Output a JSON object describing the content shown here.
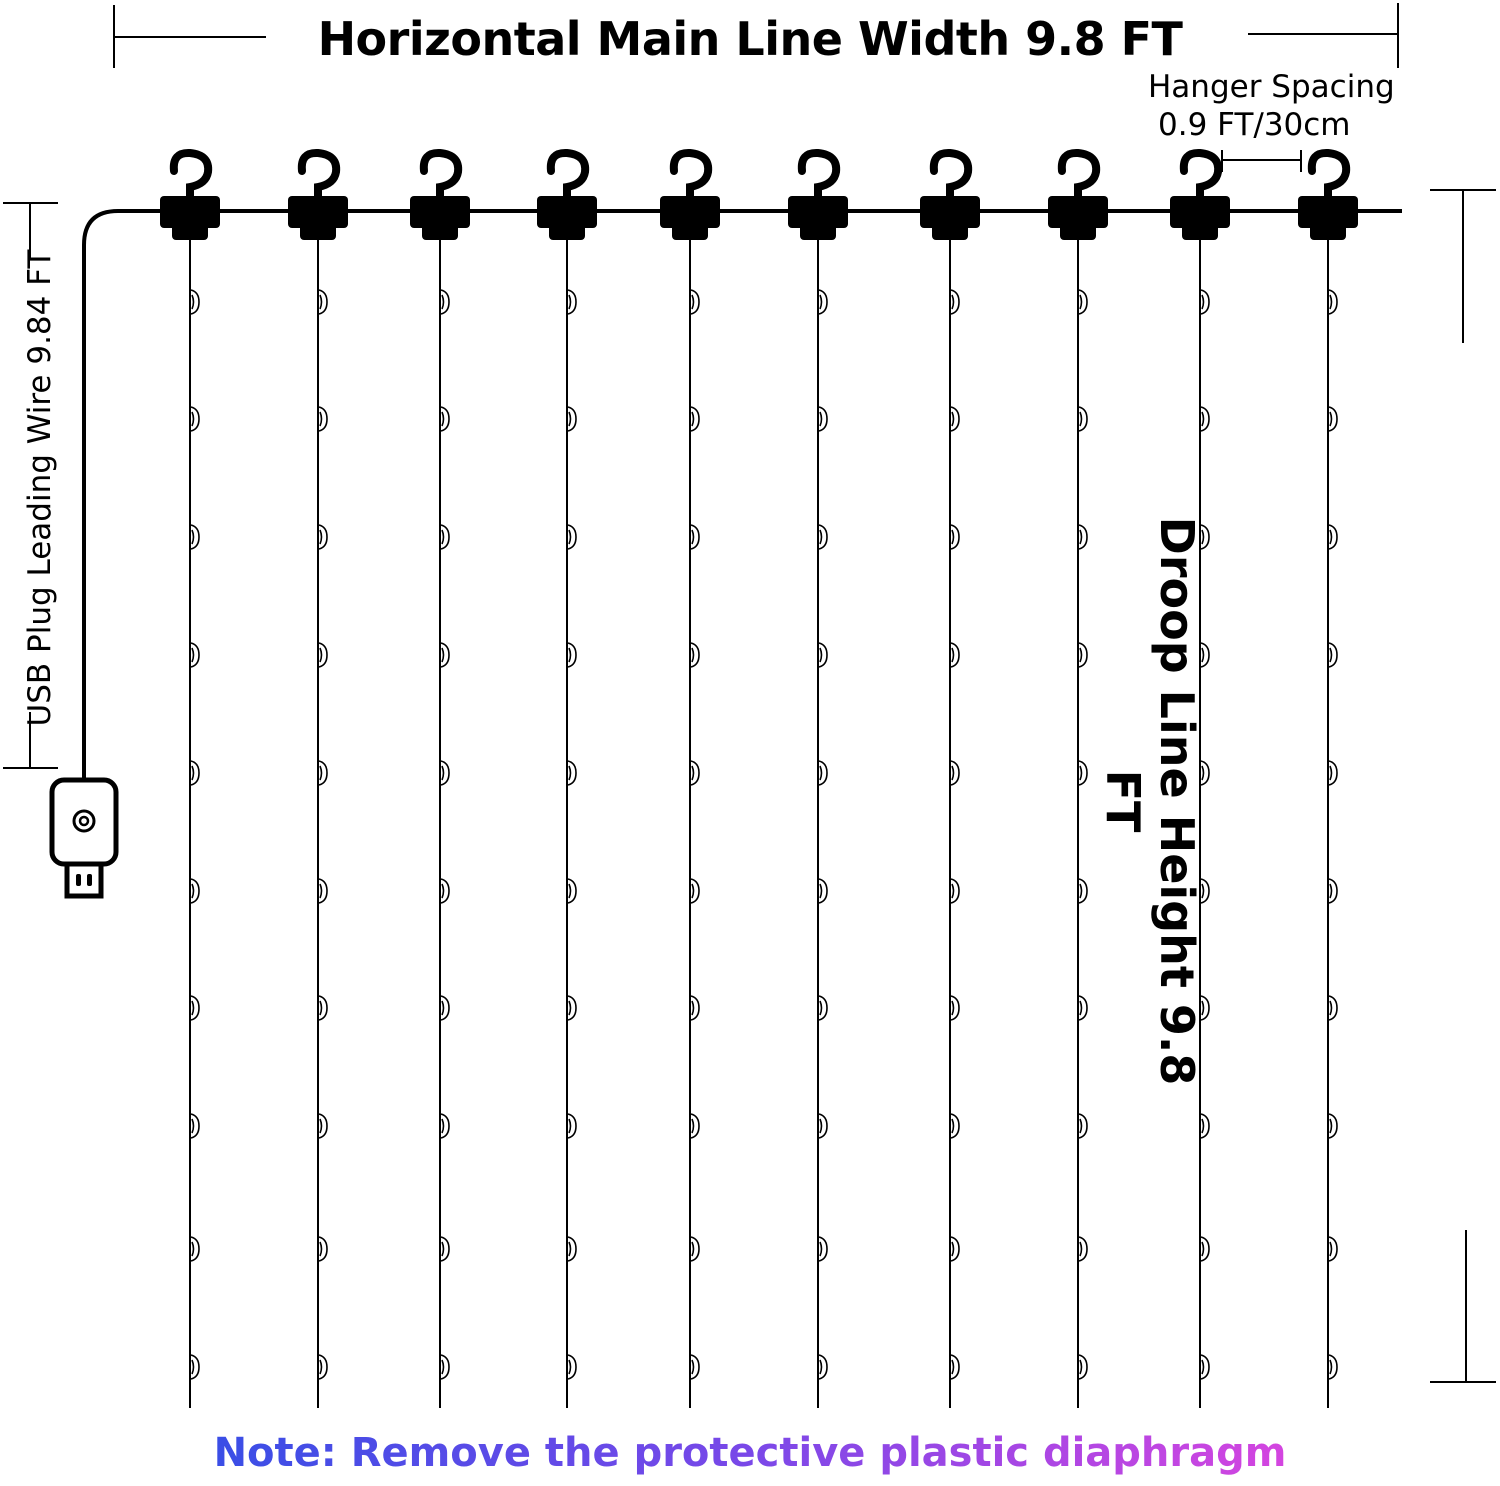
{
  "title": "Horizontal Main Line Width 9.8 FT",
  "hanger_spacing": {
    "line1": "Hanger Spacing",
    "line2": "0.9 FT/30cm"
  },
  "usb_label": "USB Plug Leading Wire 9.84 FT",
  "droop_label": "Droop Line Height 9.8 FT",
  "note": "Note: Remove the protective plastic diaphragm",
  "colors": {
    "note_start": "#3a4ee6",
    "note_mid": "#7a48e8",
    "note_end": "#d445e0",
    "line": "#000000"
  },
  "strand_count": 10,
  "leds_per_strand": 10
}
